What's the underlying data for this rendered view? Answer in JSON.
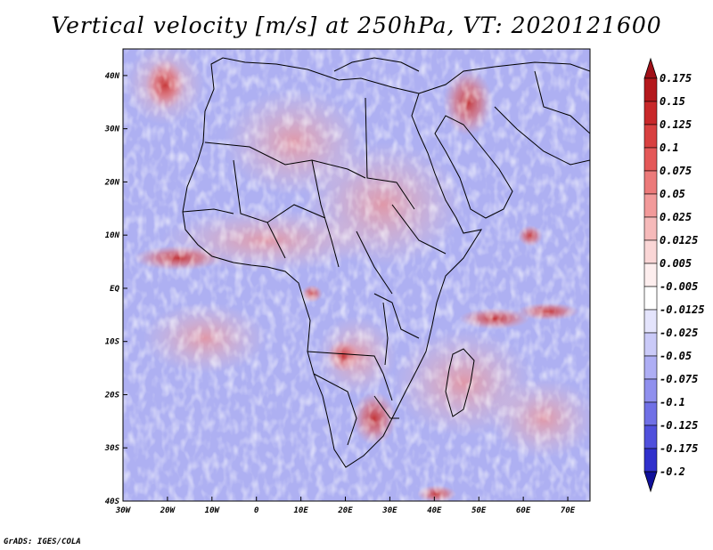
{
  "title": "Vertical velocity [m/s] at 250hPa, VT: 2020121600",
  "credit": "GrADS: IGES/COLA",
  "map": {
    "lon_range": [
      -30,
      75
    ],
    "lat_range": [
      -40,
      45
    ],
    "x_ticks": [
      {
        "lon": -30,
        "label": "30W"
      },
      {
        "lon": -20,
        "label": "20W"
      },
      {
        "lon": -10,
        "label": "10W"
      },
      {
        "lon": 0,
        "label": "0"
      },
      {
        "lon": 10,
        "label": "10E"
      },
      {
        "lon": 20,
        "label": "20E"
      },
      {
        "lon": 30,
        "label": "30E"
      },
      {
        "lon": 40,
        "label": "40E"
      },
      {
        "lon": 50,
        "label": "50E"
      },
      {
        "lon": 60,
        "label": "60E"
      },
      {
        "lon": 70,
        "label": "70E"
      }
    ],
    "y_ticks": [
      {
        "lat": 40,
        "label": "40N"
      },
      {
        "lat": 30,
        "label": "30N"
      },
      {
        "lat": 20,
        "label": "20N"
      },
      {
        "lat": 10,
        "label": "10N"
      },
      {
        "lat": 0,
        "label": "EQ"
      },
      {
        "lat": -10,
        "label": "10S"
      },
      {
        "lat": -20,
        "label": "20S"
      },
      {
        "lat": -30,
        "label": "30S"
      },
      {
        "lat": -40,
        "label": "40S"
      }
    ],
    "features": [
      {
        "name": "tropical-atlantic-ascent",
        "lon": -20,
        "lat": 5,
        "sign": "positive"
      },
      {
        "name": "red-sea-ascent",
        "lon": 42,
        "lat": 25,
        "sign": "positive"
      },
      {
        "name": "indian-ocean-ascent",
        "lon": 55,
        "lat": -5,
        "sign": "positive"
      },
      {
        "name": "southern-africa-ascent",
        "lon": 27,
        "lat": -25,
        "sign": "positive"
      }
    ]
  },
  "colorbar": {
    "levels": [
      {
        "label": "0.175",
        "color": "#b4181c"
      },
      {
        "label": "0.15",
        "color": "#c8282a"
      },
      {
        "label": "0.125",
        "color": "#d84040"
      },
      {
        "label": "0.1",
        "color": "#e45858"
      },
      {
        "label": "0.075",
        "color": "#ec7a7a"
      },
      {
        "label": "0.05",
        "color": "#f29a9a"
      },
      {
        "label": "0.025",
        "color": "#f6baba"
      },
      {
        "label": "0.0125",
        "color": "#fad6d6"
      },
      {
        "label": "0.005",
        "color": "#fdeeee"
      },
      {
        "label": "-0.005",
        "color": "#ffffff"
      },
      {
        "label": "-0.0125",
        "color": "#e4e4fc"
      },
      {
        "label": "-0.025",
        "color": "#cacaf8"
      },
      {
        "label": "-0.05",
        "color": "#aeaef4"
      },
      {
        "label": "-0.075",
        "color": "#9090ee"
      },
      {
        "label": "-0.1",
        "color": "#7070e6"
      },
      {
        "label": "-0.125",
        "color": "#5050dc"
      },
      {
        "label": "-0.175",
        "color": "#3030cc"
      },
      {
        "label": "-0.2",
        "color": "#1818b0"
      }
    ],
    "top_color": "#a01018",
    "bottom_color": "#10109a"
  }
}
